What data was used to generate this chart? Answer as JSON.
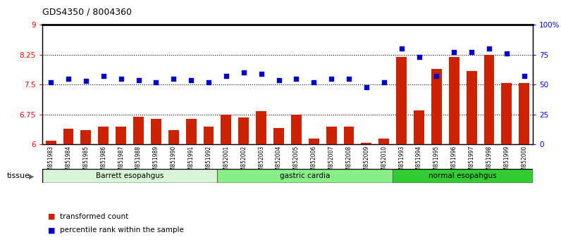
{
  "title": "GDS4350 / 8004360",
  "samples": [
    "GSM851983",
    "GSM851984",
    "GSM851985",
    "GSM851986",
    "GSM851987",
    "GSM851988",
    "GSM851989",
    "GSM851990",
    "GSM851991",
    "GSM851992",
    "GSM852001",
    "GSM852002",
    "GSM852003",
    "GSM852004",
    "GSM852005",
    "GSM852006",
    "GSM852007",
    "GSM852008",
    "GSM852009",
    "GSM852010",
    "GSM851993",
    "GSM851994",
    "GSM851995",
    "GSM851996",
    "GSM851997",
    "GSM851998",
    "GSM851999",
    "GSM852000"
  ],
  "bar_values": [
    6.1,
    6.4,
    6.35,
    6.45,
    6.45,
    6.7,
    6.65,
    6.35,
    6.65,
    6.45,
    6.75,
    6.68,
    6.83,
    6.42,
    6.75,
    6.15,
    6.45,
    6.45,
    6.04,
    6.15,
    8.2,
    6.85,
    7.9,
    8.2,
    7.85,
    8.25,
    7.55,
    7.55
  ],
  "dot_values": [
    52,
    55,
    53,
    57,
    55,
    54,
    52,
    55,
    54,
    52,
    57,
    60,
    59,
    54,
    55,
    52,
    55,
    55,
    48,
    52,
    80,
    73,
    57,
    77,
    77,
    80,
    76,
    57
  ],
  "groups": [
    {
      "label": "Barrett esopahgus",
      "start": 0,
      "end": 10,
      "color": "#d8f5d8"
    },
    {
      "label": "gastric cardia",
      "start": 10,
      "end": 20,
      "color": "#88ee88"
    },
    {
      "label": "normal esopahgus",
      "start": 20,
      "end": 28,
      "color": "#33cc33"
    }
  ],
  "ylim_left": [
    6.0,
    9.0
  ],
  "ylim_right": [
    0,
    100
  ],
  "yticks_left": [
    6.0,
    6.75,
    7.5,
    8.25,
    9.0
  ],
  "ytick_labels_left": [
    "6",
    "6.75",
    "7.5",
    "8.25",
    "9"
  ],
  "yticks_right": [
    0,
    25,
    50,
    75,
    100
  ],
  "ytick_labels_right": [
    "0",
    "25",
    "50",
    "75",
    "100%"
  ],
  "hlines": [
    6.75,
    7.5,
    8.25
  ],
  "bar_color": "#cc2200",
  "dot_color": "#0000cc",
  "bar_width": 0.6,
  "legend_bar_label": "transformed count",
  "legend_dot_label": "percentile rank within the sample",
  "tissue_label": "tissue",
  "background_color": "#ffffff"
}
